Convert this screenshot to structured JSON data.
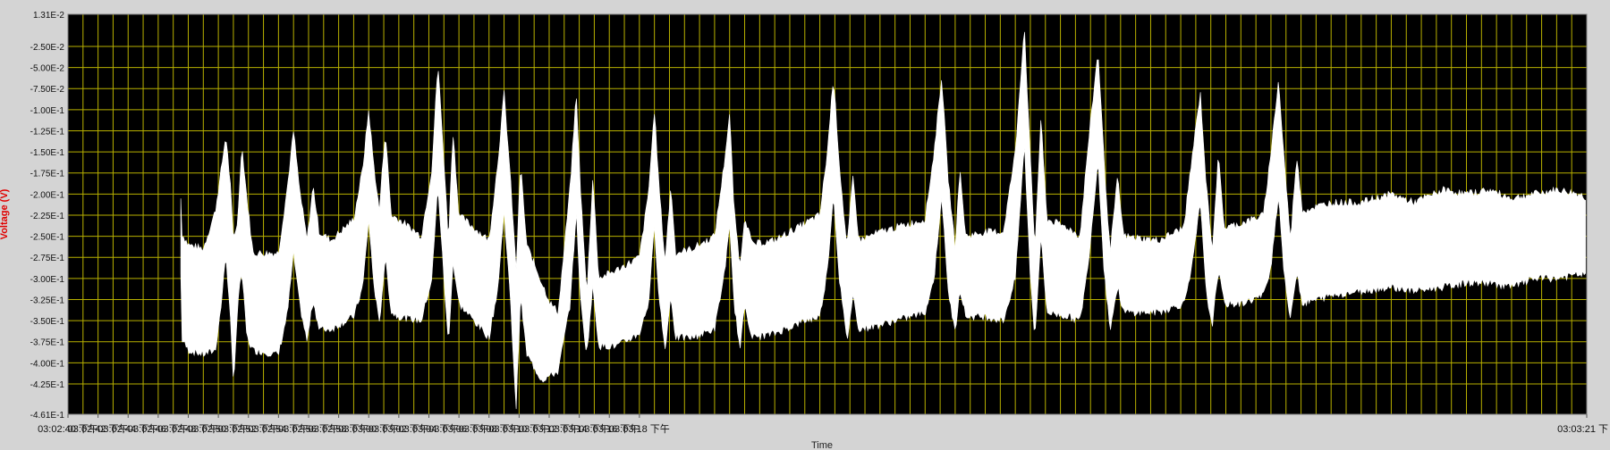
{
  "chart_data": {
    "type": "line",
    "title": "",
    "xlabel": "Time",
    "ylabel": "Voltage (V)",
    "ylim": [
      -0.461,
      0.0131
    ],
    "xlim_seconds": [
      0,
      101
    ],
    "y_ticks": [
      {
        "v": 0.0131,
        "label": "1.31E-2"
      },
      {
        "v": -0.025,
        "label": "-2.50E-2"
      },
      {
        "v": -0.05,
        "label": "-5.00E-2"
      },
      {
        "v": -0.075,
        "label": "-7.50E-2"
      },
      {
        "v": -0.1,
        "label": "-1.00E-1"
      },
      {
        "v": -0.125,
        "label": "-1.25E-1"
      },
      {
        "v": -0.15,
        "label": "-1.50E-1"
      },
      {
        "v": -0.175,
        "label": "-1.75E-1"
      },
      {
        "v": -0.2,
        "label": "-2.00E-1"
      },
      {
        "v": -0.225,
        "label": "-2.25E-1"
      },
      {
        "v": -0.25,
        "label": "-2.50E-1"
      },
      {
        "v": -0.275,
        "label": "-2.75E-1"
      },
      {
        "v": -0.3,
        "label": "-3.00E-1"
      },
      {
        "v": -0.325,
        "label": "-3.25E-1"
      },
      {
        "v": -0.35,
        "label": "-3.50E-1"
      },
      {
        "v": -0.375,
        "label": "-3.75E-1"
      },
      {
        "v": -0.4,
        "label": "-4.00E-1"
      },
      {
        "v": -0.425,
        "label": "-4.25E-1"
      },
      {
        "v": -0.461,
        "label": "-4.61E-1"
      }
    ],
    "x_ticks": [
      {
        "t": 0,
        "label": "03:02:40 下午"
      },
      {
        "t": 2,
        "label": "03:02:42 下午"
      },
      {
        "t": 4,
        "label": "03:02:44 下午"
      },
      {
        "t": 6,
        "label": "03:02:46 下午"
      },
      {
        "t": 8,
        "label": "03:02:48 下午"
      },
      {
        "t": 10,
        "label": "03:02:50 下午"
      },
      {
        "t": 12,
        "label": "03:02:52 下午"
      },
      {
        "t": 14,
        "label": "03:02:54 下午"
      },
      {
        "t": 16,
        "label": "03:02:56 下午"
      },
      {
        "t": 18,
        "label": "03:02:58 下午"
      },
      {
        "t": 20,
        "label": "03:03:00 下午"
      },
      {
        "t": 22,
        "label": "03:03:02 下午"
      },
      {
        "t": 24,
        "label": "03:03:04 下午"
      },
      {
        "t": 26,
        "label": "03:03:06 下午"
      },
      {
        "t": 28,
        "label": "03:03:08 下午"
      },
      {
        "t": 30,
        "label": "03:03:10 下午"
      },
      {
        "t": 32,
        "label": "03:03:12 下午"
      },
      {
        "t": 34,
        "label": "03:03:14 下午"
      },
      {
        "t": 36,
        "label": "03:03:16 下午"
      },
      {
        "t": 38,
        "label": "03:03:18 下午"
      },
      {
        "t": 101,
        "label": "03:03:21 下"
      }
    ],
    "grid": true,
    "series": [
      {
        "color": "#ffffff",
        "upper": [
          [
            7.5,
            -0.245
          ],
          [
            8.0,
            -0.26
          ],
          [
            9.0,
            -0.265
          ],
          [
            9.8,
            -0.22
          ],
          [
            10.2,
            -0.17
          ],
          [
            10.5,
            -0.13
          ],
          [
            10.8,
            -0.19
          ],
          [
            11.0,
            -0.255
          ],
          [
            11.3,
            -0.23
          ],
          [
            11.55,
            -0.14
          ],
          [
            11.9,
            -0.205
          ],
          [
            12.3,
            -0.27
          ],
          [
            14.0,
            -0.27
          ],
          [
            14.6,
            -0.19
          ],
          [
            15.0,
            -0.125
          ],
          [
            15.4,
            -0.195
          ],
          [
            15.9,
            -0.255
          ],
          [
            16.3,
            -0.19
          ],
          [
            16.7,
            -0.245
          ],
          [
            17.5,
            -0.255
          ],
          [
            19.0,
            -0.23
          ],
          [
            19.6,
            -0.17
          ],
          [
            20.0,
            -0.1
          ],
          [
            20.3,
            -0.16
          ],
          [
            20.7,
            -0.22
          ],
          [
            21.1,
            -0.125
          ],
          [
            21.5,
            -0.225
          ],
          [
            22.0,
            -0.23
          ],
          [
            23.5,
            -0.25
          ],
          [
            24.2,
            -0.17
          ],
          [
            24.6,
            -0.045
          ],
          [
            25.0,
            -0.16
          ],
          [
            25.3,
            -0.255
          ],
          [
            25.6,
            -0.125
          ],
          [
            26.0,
            -0.225
          ],
          [
            27.0,
            -0.24
          ],
          [
            28.0,
            -0.255
          ],
          [
            28.6,
            -0.16
          ],
          [
            29.0,
            -0.08
          ],
          [
            29.4,
            -0.175
          ],
          [
            29.8,
            -0.29
          ],
          [
            30.1,
            -0.165
          ],
          [
            30.5,
            -0.26
          ],
          [
            31.5,
            -0.305
          ],
          [
            32.1,
            -0.33
          ],
          [
            32.6,
            -0.34
          ],
          [
            33.4,
            -0.19
          ],
          [
            33.8,
            -0.08
          ],
          [
            34.1,
            -0.2
          ],
          [
            34.5,
            -0.32
          ],
          [
            34.9,
            -0.18
          ],
          [
            35.3,
            -0.3
          ],
          [
            36.5,
            -0.29
          ],
          [
            38.0,
            -0.275
          ],
          [
            38.6,
            -0.2
          ],
          [
            39.0,
            -0.1
          ],
          [
            39.3,
            -0.19
          ],
          [
            39.7,
            -0.28
          ],
          [
            40.1,
            -0.19
          ],
          [
            40.4,
            -0.27
          ],
          [
            41.5,
            -0.265
          ],
          [
            43.0,
            -0.25
          ],
          [
            43.6,
            -0.17
          ],
          [
            44.0,
            -0.105
          ],
          [
            44.3,
            -0.22
          ],
          [
            44.7,
            -0.285
          ],
          [
            45.0,
            -0.225
          ],
          [
            45.5,
            -0.26
          ],
          [
            47.0,
            -0.255
          ],
          [
            49.0,
            -0.235
          ],
          [
            50.0,
            -0.225
          ],
          [
            50.5,
            -0.15
          ],
          [
            50.9,
            -0.06
          ],
          [
            51.3,
            -0.165
          ],
          [
            51.8,
            -0.265
          ],
          [
            52.2,
            -0.18
          ],
          [
            52.6,
            -0.255
          ],
          [
            54.0,
            -0.245
          ],
          [
            57.0,
            -0.23
          ],
          [
            57.6,
            -0.15
          ],
          [
            58.1,
            -0.06
          ],
          [
            58.5,
            -0.175
          ],
          [
            59.0,
            -0.265
          ],
          [
            59.3,
            -0.17
          ],
          [
            59.7,
            -0.25
          ],
          [
            61.0,
            -0.245
          ],
          [
            62.2,
            -0.245
          ],
          [
            63.0,
            -0.15
          ],
          [
            63.6,
            0.0
          ],
          [
            64.0,
            -0.16
          ],
          [
            64.3,
            -0.265
          ],
          [
            64.7,
            -0.11
          ],
          [
            65.1,
            -0.23
          ],
          [
            66.5,
            -0.24
          ],
          [
            67.3,
            -0.25
          ],
          [
            67.8,
            -0.15
          ],
          [
            68.5,
            -0.03
          ],
          [
            68.9,
            -0.16
          ],
          [
            69.3,
            -0.27
          ],
          [
            69.8,
            -0.18
          ],
          [
            70.2,
            -0.25
          ],
          [
            72.5,
            -0.255
          ],
          [
            74.2,
            -0.24
          ],
          [
            74.8,
            -0.15
          ],
          [
            75.3,
            -0.08
          ],
          [
            75.7,
            -0.19
          ],
          [
            76.1,
            -0.265
          ],
          [
            76.5,
            -0.155
          ],
          [
            76.9,
            -0.24
          ],
          [
            78.0,
            -0.235
          ],
          [
            79.5,
            -0.225
          ],
          [
            80.0,
            -0.15
          ],
          [
            80.5,
            -0.065
          ],
          [
            80.9,
            -0.165
          ],
          [
            81.3,
            -0.255
          ],
          [
            81.7,
            -0.155
          ],
          [
            82.1,
            -0.22
          ],
          [
            84.0,
            -0.21
          ],
          [
            86.0,
            -0.21
          ],
          [
            88.0,
            -0.2
          ],
          [
            89.5,
            -0.21
          ],
          [
            91.5,
            -0.195
          ],
          [
            93.0,
            -0.2
          ],
          [
            94.5,
            -0.195
          ],
          [
            96.0,
            -0.205
          ],
          [
            97.5,
            -0.2
          ],
          [
            99.0,
            -0.195
          ],
          [
            100.5,
            -0.2
          ],
          [
            101.0,
            -0.205
          ]
        ],
        "lower": [
          [
            7.5,
            -0.37
          ],
          [
            8.0,
            -0.385
          ],
          [
            9.0,
            -0.39
          ],
          [
            9.8,
            -0.385
          ],
          [
            10.2,
            -0.33
          ],
          [
            10.5,
            -0.27
          ],
          [
            10.8,
            -0.35
          ],
          [
            11.0,
            -0.425
          ],
          [
            11.3,
            -0.33
          ],
          [
            11.55,
            -0.29
          ],
          [
            11.9,
            -0.37
          ],
          [
            12.3,
            -0.385
          ],
          [
            14.0,
            -0.39
          ],
          [
            14.6,
            -0.34
          ],
          [
            15.0,
            -0.27
          ],
          [
            15.4,
            -0.33
          ],
          [
            15.9,
            -0.375
          ],
          [
            16.3,
            -0.325
          ],
          [
            16.7,
            -0.36
          ],
          [
            17.5,
            -0.36
          ],
          [
            19.0,
            -0.345
          ],
          [
            19.6,
            -0.31
          ],
          [
            20.0,
            -0.23
          ],
          [
            20.3,
            -0.3
          ],
          [
            20.7,
            -0.355
          ],
          [
            21.1,
            -0.275
          ],
          [
            21.5,
            -0.34
          ],
          [
            22.0,
            -0.345
          ],
          [
            23.5,
            -0.35
          ],
          [
            24.2,
            -0.3
          ],
          [
            24.6,
            -0.19
          ],
          [
            25.0,
            -0.3
          ],
          [
            25.3,
            -0.38
          ],
          [
            25.6,
            -0.28
          ],
          [
            26.0,
            -0.33
          ],
          [
            27.0,
            -0.35
          ],
          [
            28.0,
            -0.37
          ],
          [
            28.6,
            -0.31
          ],
          [
            29.0,
            -0.22
          ],
          [
            29.4,
            -0.32
          ],
          [
            29.8,
            -0.455
          ],
          [
            30.1,
            -0.32
          ],
          [
            30.5,
            -0.39
          ],
          [
            31.5,
            -0.42
          ],
          [
            32.1,
            -0.415
          ],
          [
            32.6,
            -0.41
          ],
          [
            33.4,
            -0.33
          ],
          [
            33.8,
            -0.22
          ],
          [
            34.1,
            -0.33
          ],
          [
            34.5,
            -0.39
          ],
          [
            34.9,
            -0.31
          ],
          [
            35.3,
            -0.38
          ],
          [
            36.5,
            -0.38
          ],
          [
            38.0,
            -0.365
          ],
          [
            38.6,
            -0.33
          ],
          [
            39.0,
            -0.24
          ],
          [
            39.3,
            -0.32
          ],
          [
            39.7,
            -0.385
          ],
          [
            40.1,
            -0.32
          ],
          [
            40.4,
            -0.37
          ],
          [
            41.5,
            -0.37
          ],
          [
            43.0,
            -0.36
          ],
          [
            43.6,
            -0.3
          ],
          [
            44.0,
            -0.24
          ],
          [
            44.3,
            -0.33
          ],
          [
            44.7,
            -0.385
          ],
          [
            45.0,
            -0.33
          ],
          [
            45.5,
            -0.37
          ],
          [
            47.0,
            -0.365
          ],
          [
            49.0,
            -0.35
          ],
          [
            50.0,
            -0.345
          ],
          [
            50.5,
            -0.29
          ],
          [
            50.9,
            -0.2
          ],
          [
            51.3,
            -0.3
          ],
          [
            51.8,
            -0.375
          ],
          [
            52.2,
            -0.32
          ],
          [
            52.6,
            -0.36
          ],
          [
            54.0,
            -0.355
          ],
          [
            57.0,
            -0.34
          ],
          [
            57.6,
            -0.3
          ],
          [
            58.1,
            -0.2
          ],
          [
            58.5,
            -0.31
          ],
          [
            59.0,
            -0.365
          ],
          [
            59.3,
            -0.31
          ],
          [
            59.7,
            -0.345
          ],
          [
            61.0,
            -0.345
          ],
          [
            62.2,
            -0.35
          ],
          [
            63.0,
            -0.3
          ],
          [
            63.6,
            -0.14
          ],
          [
            64.0,
            -0.3
          ],
          [
            64.3,
            -0.37
          ],
          [
            64.7,
            -0.25
          ],
          [
            65.1,
            -0.34
          ],
          [
            66.5,
            -0.345
          ],
          [
            67.3,
            -0.35
          ],
          [
            67.8,
            -0.29
          ],
          [
            68.5,
            -0.16
          ],
          [
            68.9,
            -0.29
          ],
          [
            69.3,
            -0.36
          ],
          [
            69.8,
            -0.31
          ],
          [
            70.2,
            -0.34
          ],
          [
            72.5,
            -0.34
          ],
          [
            74.2,
            -0.33
          ],
          [
            74.8,
            -0.28
          ],
          [
            75.3,
            -0.21
          ],
          [
            75.7,
            -0.32
          ],
          [
            76.1,
            -0.355
          ],
          [
            76.5,
            -0.29
          ],
          [
            76.9,
            -0.33
          ],
          [
            78.0,
            -0.33
          ],
          [
            79.5,
            -0.32
          ],
          [
            80.0,
            -0.285
          ],
          [
            80.5,
            -0.2
          ],
          [
            80.9,
            -0.3
          ],
          [
            81.3,
            -0.35
          ],
          [
            81.7,
            -0.29
          ],
          [
            82.1,
            -0.33
          ],
          [
            84.0,
            -0.32
          ],
          [
            86.0,
            -0.315
          ],
          [
            88.0,
            -0.31
          ],
          [
            89.5,
            -0.315
          ],
          [
            91.5,
            -0.31
          ],
          [
            93.0,
            -0.305
          ],
          [
            94.5,
            -0.305
          ],
          [
            96.0,
            -0.31
          ],
          [
            97.5,
            -0.3
          ],
          [
            99.0,
            -0.3
          ],
          [
            100.5,
            -0.295
          ],
          [
            101.0,
            -0.295
          ]
        ]
      }
    ]
  }
}
